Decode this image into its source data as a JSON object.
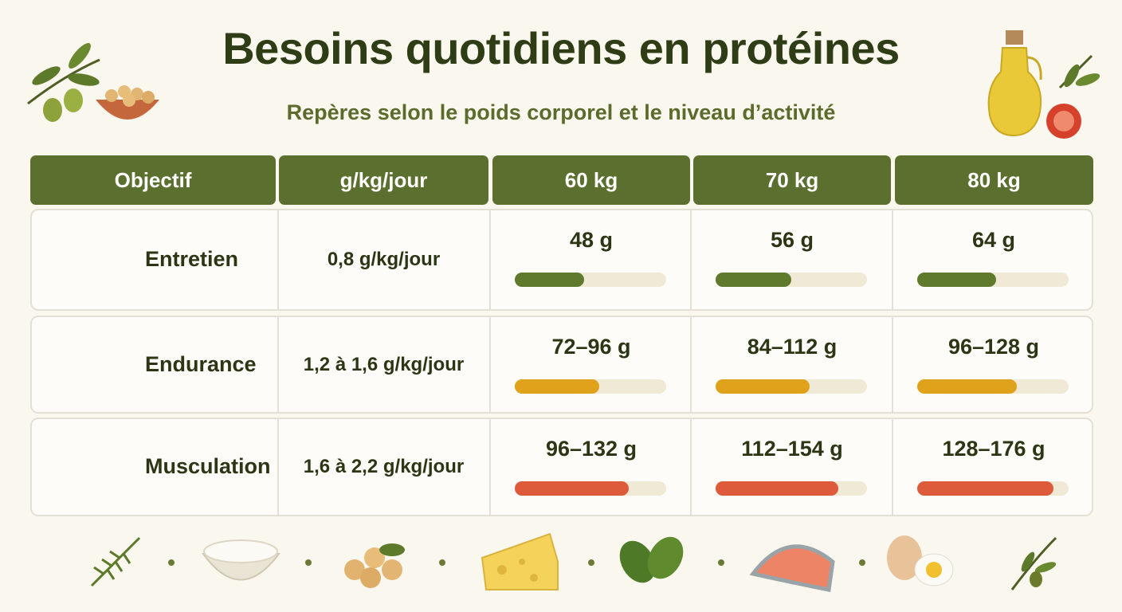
{
  "header": {
    "title": "Besoins quotidiens en protéines",
    "subtitle": "Repères selon le poids corporel et le niveau d’activité"
  },
  "table": {
    "columns": [
      "Objectif",
      "g/kg/jour",
      "60 kg",
      "70 kg",
      "80 kg"
    ],
    "rows": [
      [
        "Entretien",
        "0,8 g/kg/jour",
        "48 g",
        "56 g",
        "64 g"
      ],
      [
        "Endurance",
        "1,2 à 1,6 g/kg/jour",
        "72–96 g",
        "84–112 g",
        "96–128 g"
      ],
      [
        "Musculation",
        "1,6 à 2,2 g/kg/jour",
        "96–132 g",
        "112–154 g",
        "128–176 g"
      ]
    ]
  }
}
